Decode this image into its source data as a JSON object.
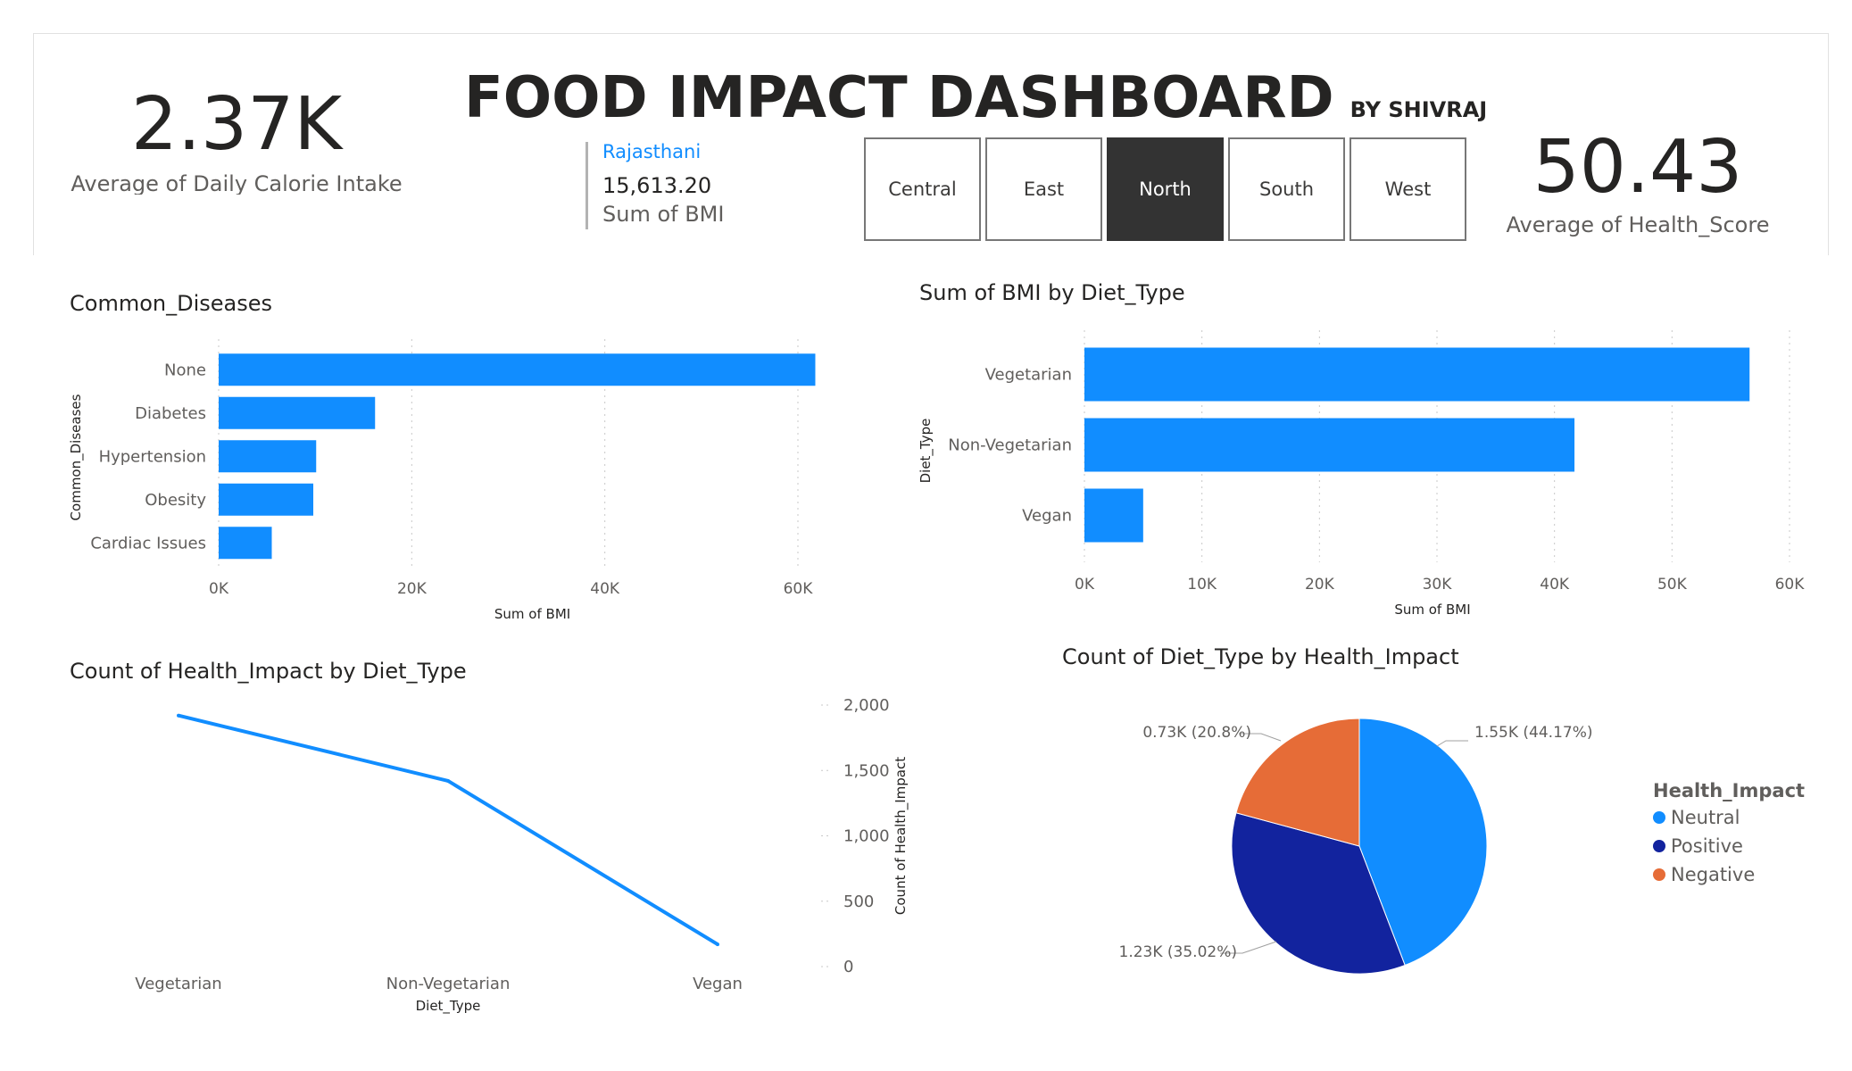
{
  "header": {
    "title": "FOOD IMPACT DASHBOARD",
    "byline": "BY SHIVRAJ"
  },
  "kpi_calorie": {
    "value": "2.37K",
    "label": "Average of Daily Calorie Intake"
  },
  "kpi_health": {
    "value": "50.43",
    "label": "Average of Health_Score"
  },
  "bmi_card": {
    "category": "Rajasthani",
    "value": "15,613.20",
    "label": "Sum of BMI"
  },
  "region_slicer": {
    "options": [
      "Central",
      "East",
      "North",
      "South",
      "West"
    ],
    "selected": "North",
    "selected_color": "#333333"
  },
  "colors": {
    "bar": "#118DFF",
    "neutral": "#118DFF",
    "positive": "#12239E",
    "negative": "#E66C37"
  },
  "chart_data": [
    {
      "type": "bar",
      "orientation": "horizontal",
      "title": "Common_Diseases",
      "categories": [
        "None",
        "Diabetes",
        "Hypertension",
        "Obesity",
        "Cardiac Issues"
      ],
      "values": [
        61800,
        16200,
        10100,
        9800,
        5500
      ],
      "xlabel": "Sum of BMI",
      "ylabel": "Common_Diseases",
      "xlim": [
        0,
        65000
      ],
      "xticks": [
        "0K",
        "20K",
        "40K",
        "60K"
      ],
      "grid": true
    },
    {
      "type": "bar",
      "orientation": "horizontal",
      "title": "Sum of BMI by Diet_Type",
      "categories": [
        "Vegetarian",
        "Non-Vegetarian",
        "Vegan"
      ],
      "values": [
        56600,
        41700,
        5000
      ],
      "xlabel": "Sum of BMI",
      "ylabel": "Diet_Type",
      "xlim": [
        0,
        60000
      ],
      "xticks": [
        "0K",
        "10K",
        "20K",
        "30K",
        "40K",
        "50K",
        "60K"
      ],
      "grid": true
    },
    {
      "type": "line",
      "title": "Count of Health_Impact by Diet_Type",
      "categories": [
        "Vegetarian",
        "Non-Vegetarian",
        "Vegan"
      ],
      "values": [
        1920,
        1420,
        170
      ],
      "xlabel": "Diet_Type",
      "ylabel": "Count of Health_Impact",
      "ylim": [
        0,
        2000
      ],
      "yticks": [
        "0",
        "500",
        "1,000",
        "1,500",
        "2,000"
      ],
      "y_axis_position": "right",
      "grid": true
    },
    {
      "type": "pie",
      "title": "Count of Diet_Type by Health_Impact",
      "legend_title": "Health_Impact",
      "legend_position": "right",
      "slices": [
        {
          "name": "Neutral",
          "value": 1550,
          "percent": 44.17,
          "label": "1.55K (44.17%)"
        },
        {
          "name": "Positive",
          "value": 1230,
          "percent": 35.02,
          "label": "1.23K (35.02%)"
        },
        {
          "name": "Negative",
          "value": 730,
          "percent": 20.8,
          "label": "0.73K (20.8%)"
        }
      ]
    }
  ]
}
